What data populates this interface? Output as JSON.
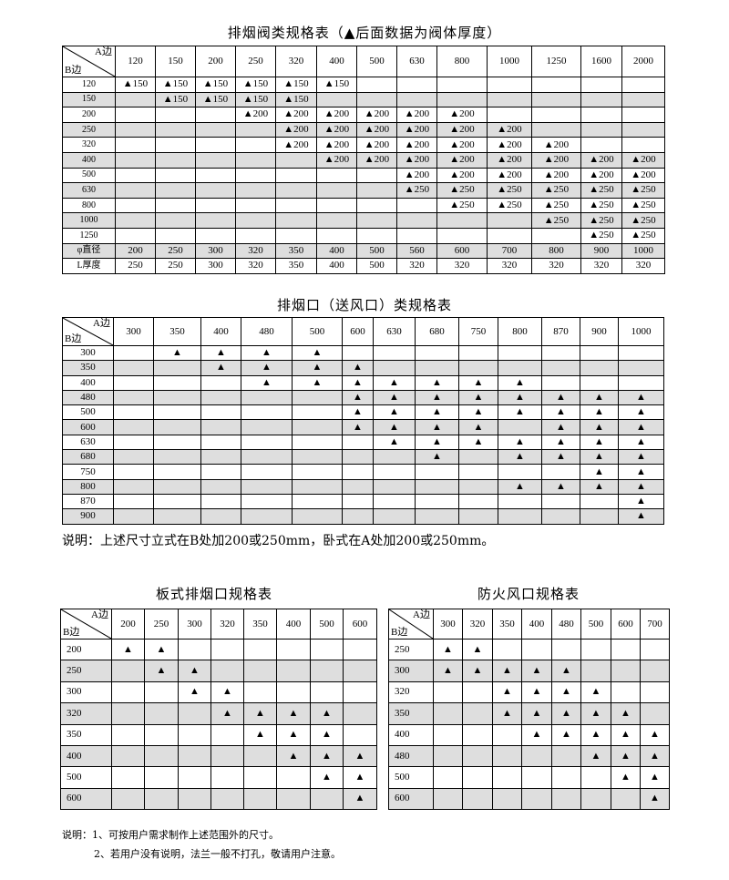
{
  "table1": {
    "title": "排烟阀类规格表（▲后面数据为阀体厚度）",
    "corner_a": "A边",
    "corner_b": "B边",
    "columns": [
      "120",
      "150",
      "200",
      "250",
      "320",
      "400",
      "500",
      "630",
      "800",
      "1000",
      "1250",
      "1600",
      "2000"
    ],
    "rows": [
      {
        "label": "120",
        "cells": [
          "▲150",
          "▲150",
          "▲150",
          "▲150",
          "▲150",
          "▲150",
          "",
          "",
          "",
          "",
          "",
          "",
          ""
        ]
      },
      {
        "label": "150",
        "cells": [
          "",
          "▲150",
          "▲150",
          "▲150",
          "▲150",
          "",
          "",
          "",
          "",
          "",
          "",
          "",
          ""
        ]
      },
      {
        "label": "200",
        "cells": [
          "",
          "",
          "",
          "▲200",
          "▲200",
          "▲200",
          "▲200",
          "▲200",
          "▲200",
          "",
          "",
          "",
          ""
        ]
      },
      {
        "label": "250",
        "cells": [
          "",
          "",
          "",
          "",
          "▲200",
          "▲200",
          "▲200",
          "▲200",
          "▲200",
          "▲200",
          "",
          "",
          ""
        ]
      },
      {
        "label": "320",
        "cells": [
          "",
          "",
          "",
          "",
          "▲200",
          "▲200",
          "▲200",
          "▲200",
          "▲200",
          "▲200",
          "▲200",
          "",
          ""
        ]
      },
      {
        "label": "400",
        "cells": [
          "",
          "",
          "",
          "",
          "",
          "▲200",
          "▲200",
          "▲200",
          "▲200",
          "▲200",
          "▲200",
          "▲200",
          "▲200"
        ]
      },
      {
        "label": "500",
        "cells": [
          "",
          "",
          "",
          "",
          "",
          "",
          "",
          "▲200",
          "▲200",
          "▲200",
          "▲200",
          "▲200",
          "▲200"
        ]
      },
      {
        "label": "630",
        "cells": [
          "",
          "",
          "",
          "",
          "",
          "",
          "",
          "▲250",
          "▲250",
          "▲250",
          "▲250",
          "▲250",
          "▲250"
        ]
      },
      {
        "label": "800",
        "cells": [
          "",
          "",
          "",
          "",
          "",
          "",
          "",
          "",
          "▲250",
          "▲250",
          "▲250",
          "▲250",
          "▲250"
        ]
      },
      {
        "label": "1000",
        "cells": [
          "",
          "",
          "",
          "",
          "",
          "",
          "",
          "",
          "",
          "",
          "▲250",
          "▲250",
          "▲250"
        ]
      },
      {
        "label": "1250",
        "cells": [
          "",
          "",
          "",
          "",
          "",
          "",
          "",
          "",
          "",
          "",
          "",
          "▲250",
          "▲250"
        ]
      },
      {
        "label": "φ直径",
        "cells": [
          "200",
          "250",
          "300",
          "320",
          "350",
          "400",
          "500",
          "560",
          "600",
          "700",
          "800",
          "900",
          "1000"
        ]
      },
      {
        "label": "L厚度",
        "cells": [
          "250",
          "250",
          "300",
          "320",
          "350",
          "400",
          "500",
          "320",
          "320",
          "320",
          "320",
          "320",
          "320"
        ]
      }
    ]
  },
  "table2": {
    "title": "排烟口（送风口）类规格表",
    "corner_a": "A边",
    "corner_b": "B边",
    "columns": [
      "300",
      "350",
      "400",
      "480",
      "500",
      "600",
      "630",
      "680",
      "750",
      "800",
      "870",
      "900",
      "1000"
    ],
    "rows": [
      {
        "label": "300",
        "cells": [
          "",
          "▲",
          "▲",
          "▲",
          "▲",
          "",
          "",
          "",
          "",
          "",
          "",
          "",
          ""
        ]
      },
      {
        "label": "350",
        "cells": [
          "",
          "",
          "▲",
          "▲",
          "▲",
          "▲",
          "",
          "",
          "",
          "",
          "",
          "",
          ""
        ]
      },
      {
        "label": "400",
        "cells": [
          "",
          "",
          "",
          "▲",
          "▲",
          "▲",
          "▲",
          "▲",
          "▲",
          "▲",
          "",
          "",
          ""
        ]
      },
      {
        "label": "480",
        "cells": [
          "",
          "",
          "",
          "",
          "",
          "▲",
          "▲",
          "▲",
          "▲",
          "▲",
          "▲",
          "▲",
          "▲"
        ]
      },
      {
        "label": "500",
        "cells": [
          "",
          "",
          "",
          "",
          "",
          "▲",
          "▲",
          "▲",
          "▲",
          "▲",
          "▲",
          "▲",
          "▲"
        ]
      },
      {
        "label": "600",
        "cells": [
          "",
          "",
          "",
          "",
          "",
          "▲",
          "▲",
          "▲",
          "▲",
          "",
          "▲",
          "▲",
          "▲"
        ]
      },
      {
        "label": "630",
        "cells": [
          "",
          "",
          "",
          "",
          "",
          "",
          "▲",
          "▲",
          "▲",
          "▲",
          "▲",
          "▲",
          "▲"
        ]
      },
      {
        "label": "680",
        "cells": [
          "",
          "",
          "",
          "",
          "",
          "",
          "",
          "▲",
          "",
          "▲",
          "▲",
          "▲",
          "▲"
        ]
      },
      {
        "label": "750",
        "cells": [
          "",
          "",
          "",
          "",
          "",
          "",
          "",
          "",
          "",
          "",
          "",
          "▲",
          "▲"
        ]
      },
      {
        "label": "800",
        "cells": [
          "",
          "",
          "",
          "",
          "",
          "",
          "",
          "",
          "",
          "▲",
          "▲",
          "▲",
          "▲"
        ]
      },
      {
        "label": "870",
        "cells": [
          "",
          "",
          "",
          "",
          "",
          "",
          "",
          "",
          "",
          "",
          "",
          "",
          "▲"
        ]
      },
      {
        "label": "900",
        "cells": [
          "",
          "",
          "",
          "",
          "",
          "",
          "",
          "",
          "",
          "",
          "",
          "",
          "▲"
        ]
      }
    ],
    "note": "说明：上述尺寸立式在B处加200或250mm，卧式在A处加200或250mm。"
  },
  "table3": {
    "title": "板式排烟口规格表",
    "corner_a": "A边",
    "corner_b": "B边",
    "columns": [
      "200",
      "250",
      "300",
      "320",
      "350",
      "400",
      "500",
      "600"
    ],
    "rows": [
      {
        "label": "200",
        "cells": [
          "▲",
          "▲",
          "",
          "",
          "",
          "",
          "",
          ""
        ]
      },
      {
        "label": "250",
        "cells": [
          "",
          "▲",
          "▲",
          "",
          "",
          "",
          "",
          ""
        ]
      },
      {
        "label": "300",
        "cells": [
          "",
          "",
          "▲",
          "▲",
          "",
          "",
          "",
          ""
        ]
      },
      {
        "label": "320",
        "cells": [
          "",
          "",
          "",
          "▲",
          "▲",
          "▲",
          "▲",
          ""
        ]
      },
      {
        "label": "350",
        "cells": [
          "",
          "",
          "",
          "",
          "▲",
          "▲",
          "▲",
          ""
        ]
      },
      {
        "label": "400",
        "cells": [
          "",
          "",
          "",
          "",
          "",
          "▲",
          "▲",
          "▲"
        ]
      },
      {
        "label": "500",
        "cells": [
          "",
          "",
          "",
          "",
          "",
          "",
          "▲",
          "▲"
        ]
      },
      {
        "label": "600",
        "cells": [
          "",
          "",
          "",
          "",
          "",
          "",
          "",
          "▲"
        ]
      }
    ]
  },
  "table4": {
    "title": "防火风口规格表",
    "corner_a": "A边",
    "corner_b": "B边",
    "columns": [
      "300",
      "320",
      "350",
      "400",
      "480",
      "500",
      "600",
      "700"
    ],
    "rows": [
      {
        "label": "250",
        "cells": [
          "▲",
          "▲",
          "",
          "",
          "",
          "",
          "",
          ""
        ]
      },
      {
        "label": "300",
        "cells": [
          "▲",
          "▲",
          "▲",
          "▲",
          "▲",
          "",
          "",
          ""
        ]
      },
      {
        "label": "320",
        "cells": [
          "",
          "",
          "▲",
          "▲",
          "▲",
          "▲",
          "",
          ""
        ]
      },
      {
        "label": "350",
        "cells": [
          "",
          "",
          "▲",
          "▲",
          "▲",
          "▲",
          "▲",
          ""
        ]
      },
      {
        "label": "400",
        "cells": [
          "",
          "",
          "",
          "▲",
          "▲",
          "▲",
          "▲",
          "▲"
        ]
      },
      {
        "label": "480",
        "cells": [
          "",
          "",
          "",
          "",
          "",
          "▲",
          "▲",
          "▲"
        ]
      },
      {
        "label": "500",
        "cells": [
          "",
          "",
          "",
          "",
          "",
          "",
          "▲",
          "▲"
        ]
      },
      {
        "label": "600",
        "cells": [
          "",
          "",
          "",
          "",
          "",
          "",
          "",
          "▲"
        ]
      }
    ]
  },
  "footer_notes": {
    "line1": "说明：1、可按用户需求制作上述范围外的尺寸。",
    "line2": "2、若用户没有说明，法兰一般不打孔，敬请用户注意。"
  },
  "colors": {
    "shade": "#dedede",
    "border": "#000000"
  }
}
